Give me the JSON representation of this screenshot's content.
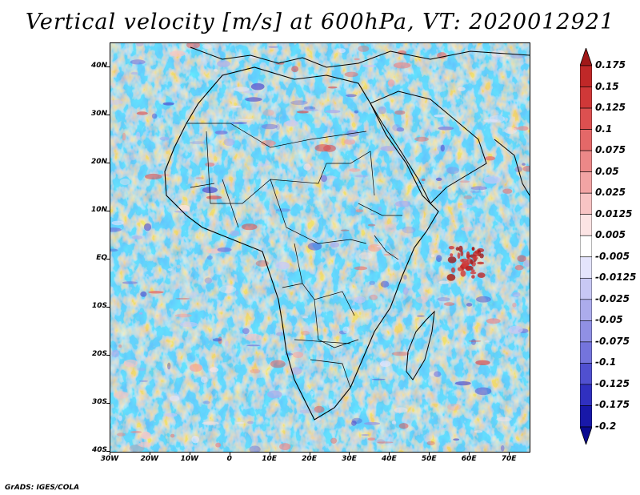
{
  "title": "Vertical velocity [m/s] at 600hPa, VT: 2020012921",
  "footer": "GrADS: IGES/COLA",
  "map": {
    "lat_labels": [
      "40N",
      "30N",
      "20N",
      "10N",
      "EQ",
      "10S",
      "20S",
      "30S",
      "40S"
    ],
    "lon_labels": [
      "30W",
      "20W",
      "10W",
      "0",
      "10E",
      "20E",
      "30E",
      "40E",
      "50E",
      "60E",
      "70E"
    ],
    "lon_range": [
      -30,
      75
    ],
    "lat_range": [
      -40,
      45
    ]
  },
  "colorbar": {
    "labels": [
      "0.175",
      "0.15",
      "0.125",
      "0.1",
      "0.075",
      "0.05",
      "0.025",
      "0.0125",
      "0.005",
      "-0.005",
      "-0.0125",
      "-0.025",
      "-0.05",
      "-0.075",
      "-0.1",
      "-0.125",
      "-0.175",
      "-0.2"
    ],
    "colors": [
      "#a01818",
      "#c02828",
      "#d03838",
      "#dc5050",
      "#e46868",
      "#ec8888",
      "#f2a4a4",
      "#f8c4c4",
      "#fce4e4",
      "#ffffff",
      "#e4e4fc",
      "#c8c8f4",
      "#acacec",
      "#9090e4",
      "#7474dc",
      "#5050d0",
      "#3030c0",
      "#1818a8",
      "#0a0a90"
    ]
  }
}
